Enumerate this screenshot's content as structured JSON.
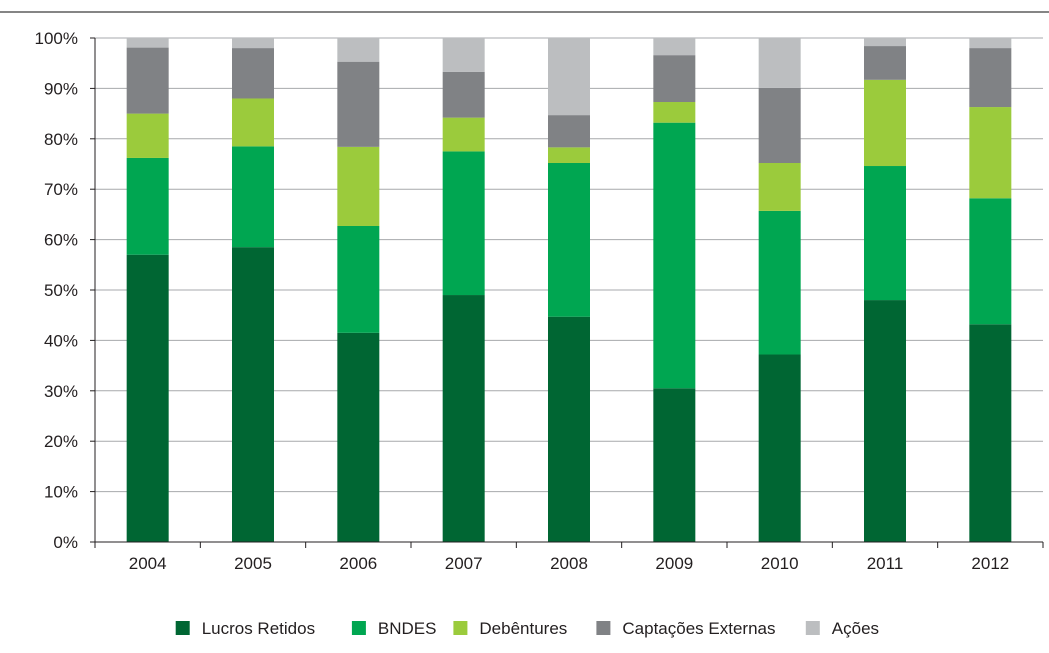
{
  "chart_data": {
    "type": "bar",
    "stacked": true,
    "normalized": true,
    "title": "",
    "xlabel": "",
    "ylabel": "",
    "ylim": [
      0,
      100
    ],
    "y_ticks": [
      "0%",
      "10%",
      "20%",
      "30%",
      "40%",
      "50%",
      "60%",
      "70%",
      "80%",
      "90%",
      "100%"
    ],
    "categories": [
      "2004",
      "2005",
      "2006",
      "2007",
      "2008",
      "2009",
      "2010",
      "2011",
      "2012"
    ],
    "grid": true,
    "legend_position": "bottom",
    "series": [
      {
        "name": "Lucros Retidos",
        "color": "#006633",
        "values": [
          57,
          58.5,
          41.5,
          49,
          44.7,
          30.5,
          37.2,
          48,
          43.2
        ]
      },
      {
        "name": "BNDES",
        "color": "#00a651",
        "values": [
          19.2,
          20,
          21.2,
          28.5,
          30.5,
          52.7,
          28.5,
          26.6,
          25
        ]
      },
      {
        "name": "Debêntures",
        "color": "#9bcb3c",
        "values": [
          8.8,
          9.5,
          15.7,
          6.7,
          3.1,
          4.1,
          9.5,
          17.1,
          18.1
        ]
      },
      {
        "name": "Captações Externas",
        "color": "#808285",
        "values": [
          13.1,
          10,
          16.9,
          9.1,
          6.4,
          9.3,
          14.9,
          6.7,
          11.7
        ]
      },
      {
        "name": "Ações",
        "color": "#bcbec0",
        "values": [
          1.9,
          2,
          4.7,
          6.7,
          15.3,
          3.4,
          9.9,
          1.6,
          2
        ]
      }
    ]
  }
}
